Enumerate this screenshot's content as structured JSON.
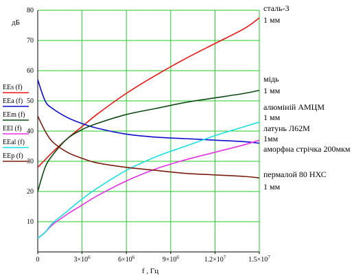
{
  "chart_data": {
    "type": "line",
    "ylabel": "дБ",
    "xlabel": "f , Гц",
    "xlim": [
      0,
      15000000
    ],
    "ylim": [
      0,
      80
    ],
    "grid": true,
    "legend_placement": "left, outside plot",
    "x_ticks": [
      0,
      3000000,
      6000000,
      9000000,
      12000000,
      15000000
    ],
    "y_ticks": [
      10,
      20,
      30,
      40,
      50,
      60,
      70,
      80
    ],
    "x_tick_labels": [
      {
        "label": "0"
      },
      {
        "mant": "3×10",
        "exp": "6"
      },
      {
        "mant": "6×10",
        "exp": "6"
      },
      {
        "mant": "9×10",
        "exp": "6"
      },
      {
        "mant": "1.2×10",
        "exp": "7"
      },
      {
        "mant": "1.5×10",
        "exp": "7"
      }
    ],
    "x": [
      0,
      500000,
      1000000,
      2000000,
      3000000,
      4000000,
      6000000,
      8000000,
      10000000,
      12000000,
      14000000,
      15000000
    ],
    "series": [
      {
        "name": "EEs (f)",
        "color": "#ee1111",
        "values": [
          28.0,
          30.5,
          33.0,
          37.5,
          41.5,
          45.5,
          52.5,
          58.5,
          64.0,
          69.0,
          74.0,
          77.5
        ]
      },
      {
        "name": "EEa (f)",
        "color": "#0a0ad0",
        "values": [
          57.0,
          50.0,
          47.5,
          44.5,
          42.5,
          41.0,
          39.0,
          38.0,
          37.5,
          37.0,
          36.5,
          36.0
        ]
      },
      {
        "name": "EEm (f)",
        "color": "#0b4a12",
        "values": [
          20.0,
          28.0,
          32.0,
          37.5,
          40.5,
          42.5,
          45.5,
          47.5,
          49.5,
          51.0,
          52.5,
          53.5
        ]
      },
      {
        "name": "EEl (f)",
        "color": "#e62ee6",
        "values": [
          4.5,
          6.5,
          9.0,
          12.5,
          15.5,
          18.5,
          23.5,
          27.5,
          30.5,
          33.0,
          35.5,
          37.0
        ]
      },
      {
        "name": "EEal (f)",
        "color": "#16e0e0",
        "values": [
          4.5,
          6.5,
          9.5,
          13.5,
          17.5,
          21.0,
          27.0,
          31.5,
          35.0,
          38.5,
          41.5,
          43.0
        ]
      },
      {
        "name": "EEp (f)",
        "color": "#7a1c10",
        "values": [
          45.0,
          40.0,
          36.5,
          33.0,
          31.0,
          29.5,
          28.0,
          27.0,
          26.0,
          25.5,
          25.0,
          24.5
        ]
      }
    ],
    "annotations": [
      {
        "line1": "сталь-3",
        "line2": "1 мм"
      },
      {
        "line1": "мідь",
        "line2": "1 мм"
      },
      {
        "line1": "алюміній АМЦМ",
        "line2": "1 мм"
      },
      {
        "line1": "латунь Л62М",
        "line2": "1мм"
      },
      {
        "line1": "аморфна стрічка 200мкм",
        "line2": ""
      },
      {
        "line1": "пермалой 80 НХС",
        "line2": "1 мм"
      }
    ]
  }
}
